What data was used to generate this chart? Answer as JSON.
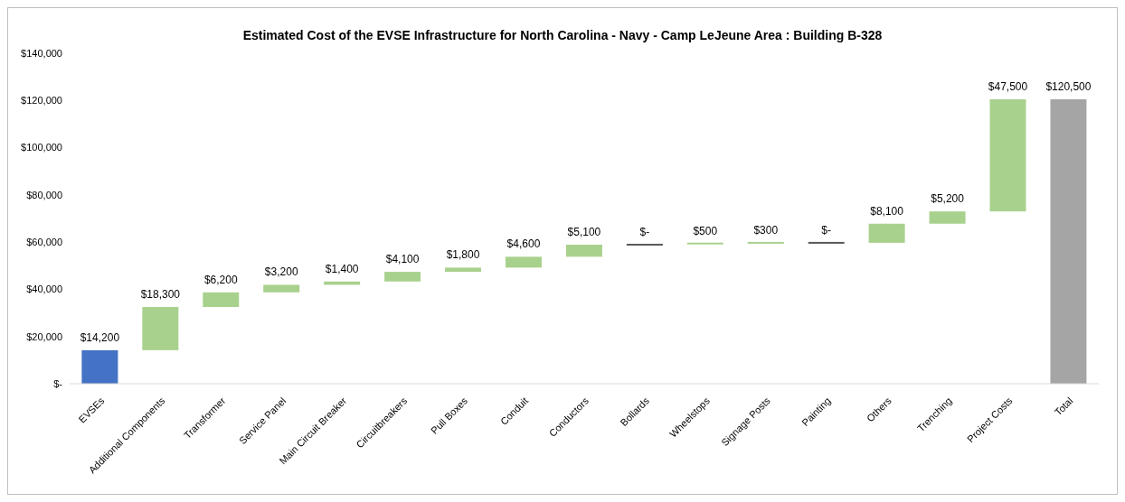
{
  "chart_data": {
    "type": "bar",
    "title": "Estimated Cost of the EVSE Infrastructure for North Carolina - Navy - Camp LeJeune Area : Building B-328",
    "categories": [
      "EVSEs",
      "Additional Components",
      "Transformer",
      "Service Panel",
      "Main Circuit Breaker",
      "Circuitbreakers",
      "Pull Boxes",
      "Conduit",
      "Conductors",
      "Bollards",
      "Wheelstops",
      "Signage Posts",
      "Painting",
      "Others",
      "Trenching",
      "Project Costs",
      "Total"
    ],
    "values": [
      14200,
      18300,
      6200,
      3200,
      1400,
      4100,
      1800,
      4600,
      5100,
      0,
      500,
      300,
      0,
      8100,
      5200,
      47500,
      120500
    ],
    "base": [
      0,
      14200,
      32500,
      38700,
      41900,
      43300,
      47400,
      49200,
      53800,
      58900,
      58900,
      59400,
      59700,
      59700,
      67800,
      73000,
      0
    ],
    "colors": [
      "#4472c4",
      "#a9d18e",
      "#a9d18e",
      "#a9d18e",
      "#a9d18e",
      "#a9d18e",
      "#a9d18e",
      "#a9d18e",
      "#a9d18e",
      "#595959",
      "#a9d18e",
      "#a9d18e",
      "#595959",
      "#a9d18e",
      "#a9d18e",
      "#a9d18e",
      "#a5a5a5"
    ],
    "value_labels": [
      "$14,200",
      "$18,300",
      "$6,200",
      "$3,200",
      "$1,400",
      "$4,100",
      "$1,800",
      "$4,600",
      "$5,100",
      "$-",
      "$500",
      "$300",
      "$-",
      "$8,100",
      "$5,200",
      "$47,500",
      "$120,500"
    ],
    "ylim": [
      0,
      140000
    ],
    "yticks": [
      {
        "value": 0,
        "label": "$-"
      },
      {
        "value": 20000,
        "label": "$20,000"
      },
      {
        "value": 40000,
        "label": "$40,000"
      },
      {
        "value": 60000,
        "label": "$60,000"
      },
      {
        "value": 80000,
        "label": "$80,000"
      },
      {
        "value": 100000,
        "label": "$100,000"
      },
      {
        "value": 120000,
        "label": "$120,000"
      },
      {
        "value": 140000,
        "label": "$140,000"
      }
    ],
    "grid": false,
    "legend": false
  }
}
